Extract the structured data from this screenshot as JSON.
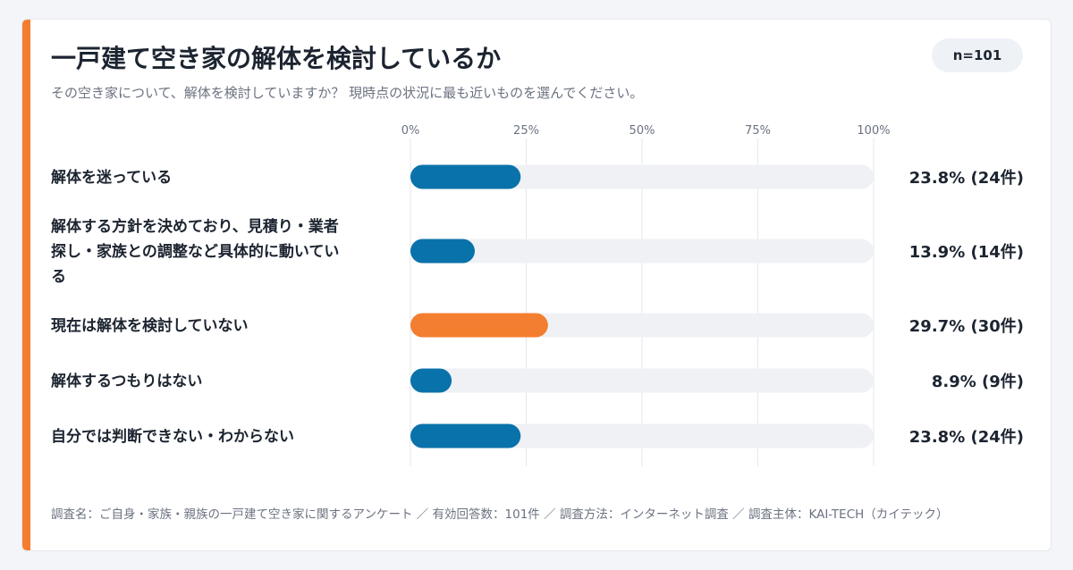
{
  "header": {
    "title": "一戸建て空き家の解体を検討しているか",
    "subtitle": "その空き家について、解体を検討していますか？ 現時点の状況に最も近いものを選んでください。",
    "badge": "n=101"
  },
  "footer": {
    "note": "調査名：ご自身・家族・親族の一戸建て空き家に関するアンケート ／ 有効回答数：101件 ／ 調査方法：インターネット調査 ／ 調査主体：KAI-TECH（カイテック）"
  },
  "colors": {
    "accent": "#f47e2f",
    "bar_default": "#0a72aa",
    "bar_highlight": "#f47e2f",
    "track": "#eff1f5",
    "grid": "#e4e7ec"
  },
  "chart_data": {
    "type": "bar",
    "orientation": "horizontal",
    "xlim": [
      0,
      100
    ],
    "ticks": [
      "0%",
      "25%",
      "50%",
      "75%",
      "100%"
    ],
    "tick_values": [
      0,
      25,
      50,
      75,
      100
    ],
    "categories": [
      [
        "解体を迷っている"
      ],
      [
        "解体する方針を決めており、見積り・業者",
        "探し・家族との調整など具体的に動いてい",
        "る"
      ],
      [
        "現在は解体を検討していない"
      ],
      [
        "解体するつもりはない"
      ],
      [
        "自分では判断できない・わからない"
      ]
    ],
    "values": [
      23.8,
      13.9,
      29.7,
      8.9,
      23.8
    ],
    "value_labels": [
      "23.8% (24件)",
      "13.9% (14件)",
      "29.7% (30件)",
      "8.9% (9件)",
      "23.8% (24件)"
    ],
    "highlight_index": 2,
    "grid": true
  }
}
